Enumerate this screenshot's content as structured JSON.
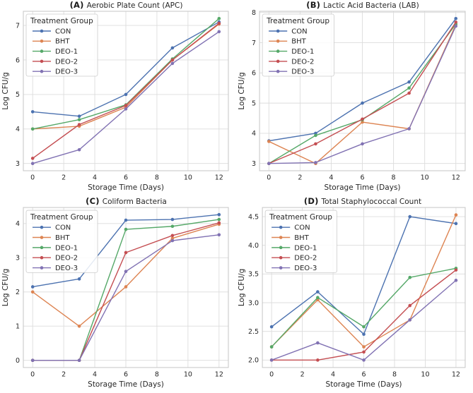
{
  "style": {
    "background": "#ffffff",
    "grid_color": "#dcdcdc",
    "spine_color": "#c6c6c6",
    "text_color": "#262626",
    "legend_border": "#cccccc",
    "legend_fill": "rgba(255,255,255,0.85)"
  },
  "chart_data": [
    {
      "id": "apc",
      "type": "line",
      "title_prefix": "(A)",
      "title": "Aerobic Plate Count (APC)",
      "xlabel": "Storage Time (Days)",
      "ylabel": "Log CFU/g",
      "legend_title": "Treatment Group",
      "legend_position": "upper-left",
      "grid": true,
      "x": [
        0,
        3,
        6,
        9,
        12
      ],
      "xticks": [
        "0",
        "2",
        "4",
        "6",
        "8",
        "10",
        "12"
      ],
      "xlim": [
        -0.6,
        12.6
      ],
      "ylim": [
        2.79,
        7.41
      ],
      "yticks": [
        "3",
        "4",
        "5",
        "6",
        "7"
      ],
      "series": [
        {
          "name": "CON",
          "color": "#4C72B0",
          "values": [
            4.5,
            4.37,
            5.0,
            6.35,
            7.1
          ]
        },
        {
          "name": "BHT",
          "color": "#DD8452",
          "values": [
            4.0,
            4.08,
            4.63,
            6.0,
            7.04
          ]
        },
        {
          "name": "DEO-1",
          "color": "#55A868",
          "values": [
            4.0,
            4.27,
            4.7,
            6.03,
            7.2
          ]
        },
        {
          "name": "DEO-2",
          "color": "#C44E52",
          "values": [
            3.15,
            4.13,
            4.68,
            6.0,
            7.06
          ]
        },
        {
          "name": "DEO-3",
          "color": "#8172B3",
          "values": [
            3.0,
            3.4,
            4.58,
            5.9,
            6.82
          ]
        }
      ]
    },
    {
      "id": "lab",
      "type": "line",
      "title_prefix": "(B)",
      "title": "Lactic Acid Bacteria (LAB)",
      "xlabel": "Storage Time (Days)",
      "ylabel": "Log CFU/g",
      "legend_title": "Treatment Group",
      "legend_position": "upper-left",
      "grid": true,
      "x": [
        0,
        3,
        6,
        9,
        12
      ],
      "xticks": [
        "0",
        "2",
        "4",
        "6",
        "8",
        "10",
        "12"
      ],
      "xlim": [
        -0.6,
        12.6
      ],
      "ylim": [
        2.76,
        8.04
      ],
      "yticks": [
        "3",
        "4",
        "5",
        "6",
        "7",
        "8"
      ],
      "series": [
        {
          "name": "CON",
          "color": "#4C72B0",
          "values": [
            3.75,
            4.0,
            5.0,
            5.7,
            7.8
          ]
        },
        {
          "name": "BHT",
          "color": "#DD8452",
          "values": [
            3.73,
            3.0,
            4.37,
            4.15,
            7.6
          ]
        },
        {
          "name": "DEO-1",
          "color": "#55A868",
          "values": [
            3.0,
            3.93,
            4.45,
            5.5,
            7.62
          ]
        },
        {
          "name": "DEO-2",
          "color": "#C44E52",
          "values": [
            3.0,
            3.65,
            4.47,
            5.33,
            7.68
          ]
        },
        {
          "name": "DEO-3",
          "color": "#8172B3",
          "values": [
            3.0,
            3.03,
            3.65,
            4.15,
            7.55
          ]
        }
      ]
    },
    {
      "id": "coliform",
      "type": "line",
      "title_prefix": "(C)",
      "title": "Coliform Bacteria",
      "xlabel": "Storage Time (Days)",
      "ylabel": "Log CFU/g",
      "legend_title": "Treatment Group",
      "legend_position": "upper-left",
      "grid": true,
      "x": [
        0,
        3,
        6,
        9,
        12
      ],
      "xticks": [
        "0",
        "2",
        "4",
        "6",
        "8",
        "10",
        "12"
      ],
      "xlim": [
        -0.6,
        12.6
      ],
      "ylim": [
        -0.21,
        4.47
      ],
      "yticks": [
        "0",
        "1",
        "2",
        "3",
        "4"
      ],
      "series": [
        {
          "name": "CON",
          "color": "#4C72B0",
          "values": [
            2.15,
            2.38,
            4.1,
            4.12,
            4.26
          ]
        },
        {
          "name": "BHT",
          "color": "#DD8452",
          "values": [
            2.0,
            1.0,
            2.15,
            3.57,
            3.98
          ]
        },
        {
          "name": "DEO-1",
          "color": "#55A868",
          "values": [
            0.0,
            0.0,
            3.83,
            3.92,
            4.12
          ]
        },
        {
          "name": "DEO-2",
          "color": "#C44E52",
          "values": [
            0.0,
            0.0,
            3.15,
            3.65,
            4.02
          ]
        },
        {
          "name": "DEO-3",
          "color": "#8172B3",
          "values": [
            0.0,
            0.0,
            2.6,
            3.5,
            3.67
          ]
        }
      ]
    },
    {
      "id": "staph",
      "type": "line",
      "title_prefix": "(D)",
      "title": "Total Staphylococcal Count",
      "xlabel": "Storage Time (Days)",
      "ylabel": "Log CFU/g",
      "legend_title": "Treatment Group",
      "legend_position": "upper-left",
      "grid": true,
      "x": [
        0,
        3,
        6,
        9,
        12
      ],
      "xticks": [
        "0",
        "2",
        "4",
        "6",
        "8",
        "10",
        "12"
      ],
      "xlim": [
        -0.6,
        12.6
      ],
      "ylim": [
        1.87,
        4.66
      ],
      "yticks": [
        "2.0",
        "2.5",
        "3.0",
        "3.5",
        "4.0",
        "4.5"
      ],
      "series": [
        {
          "name": "CON",
          "color": "#4C72B0",
          "values": [
            2.58,
            3.19,
            2.45,
            4.5,
            4.38
          ]
        },
        {
          "name": "BHT",
          "color": "#DD8452",
          "values": [
            2.23,
            3.05,
            2.23,
            2.7,
            4.53
          ]
        },
        {
          "name": "DEO-1",
          "color": "#55A868",
          "values": [
            2.23,
            3.09,
            2.58,
            3.44,
            3.6
          ]
        },
        {
          "name": "DEO-2",
          "color": "#C44E52",
          "values": [
            2.0,
            2.0,
            2.14,
            2.95,
            3.57
          ]
        },
        {
          "name": "DEO-3",
          "color": "#8172B3",
          "values": [
            2.0,
            2.3,
            2.0,
            2.7,
            3.39
          ]
        }
      ]
    }
  ]
}
